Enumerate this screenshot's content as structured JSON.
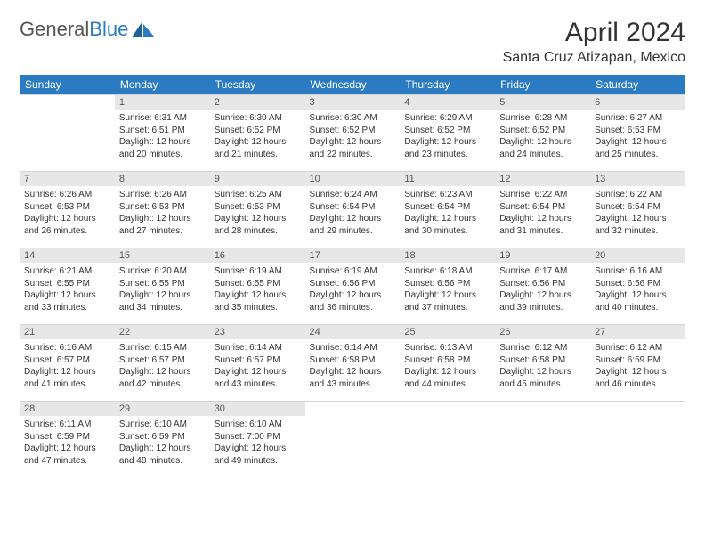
{
  "logo": {
    "word1": "General",
    "word2": "Blue"
  },
  "title": "April 2024",
  "location": "Santa Cruz Atizapan, Mexico",
  "colors": {
    "header_bg": "#2b7bc3",
    "header_fg": "#ffffff",
    "daynum_bg": "#e7e7e7",
    "daynum_fg": "#555555",
    "text": "#333333",
    "rule": "#d4d4d4",
    "page_bg": "#ffffff",
    "logo_gray": "#555555",
    "logo_blue": "#2b7bc3"
  },
  "weekdays": [
    "Sunday",
    "Monday",
    "Tuesday",
    "Wednesday",
    "Thursday",
    "Friday",
    "Saturday"
  ],
  "weeks": [
    [
      {
        "empty": true
      },
      {
        "day": "1",
        "sunrise": "Sunrise: 6:31 AM",
        "sunset": "Sunset: 6:51 PM",
        "daylight": "Daylight: 12 hours and 20 minutes."
      },
      {
        "day": "2",
        "sunrise": "Sunrise: 6:30 AM",
        "sunset": "Sunset: 6:52 PM",
        "daylight": "Daylight: 12 hours and 21 minutes."
      },
      {
        "day": "3",
        "sunrise": "Sunrise: 6:30 AM",
        "sunset": "Sunset: 6:52 PM",
        "daylight": "Daylight: 12 hours and 22 minutes."
      },
      {
        "day": "4",
        "sunrise": "Sunrise: 6:29 AM",
        "sunset": "Sunset: 6:52 PM",
        "daylight": "Daylight: 12 hours and 23 minutes."
      },
      {
        "day": "5",
        "sunrise": "Sunrise: 6:28 AM",
        "sunset": "Sunset: 6:52 PM",
        "daylight": "Daylight: 12 hours and 24 minutes."
      },
      {
        "day": "6",
        "sunrise": "Sunrise: 6:27 AM",
        "sunset": "Sunset: 6:53 PM",
        "daylight": "Daylight: 12 hours and 25 minutes."
      }
    ],
    [
      {
        "day": "7",
        "sunrise": "Sunrise: 6:26 AM",
        "sunset": "Sunset: 6:53 PM",
        "daylight": "Daylight: 12 hours and 26 minutes."
      },
      {
        "day": "8",
        "sunrise": "Sunrise: 6:26 AM",
        "sunset": "Sunset: 6:53 PM",
        "daylight": "Daylight: 12 hours and 27 minutes."
      },
      {
        "day": "9",
        "sunrise": "Sunrise: 6:25 AM",
        "sunset": "Sunset: 6:53 PM",
        "daylight": "Daylight: 12 hours and 28 minutes."
      },
      {
        "day": "10",
        "sunrise": "Sunrise: 6:24 AM",
        "sunset": "Sunset: 6:54 PM",
        "daylight": "Daylight: 12 hours and 29 minutes."
      },
      {
        "day": "11",
        "sunrise": "Sunrise: 6:23 AM",
        "sunset": "Sunset: 6:54 PM",
        "daylight": "Daylight: 12 hours and 30 minutes."
      },
      {
        "day": "12",
        "sunrise": "Sunrise: 6:22 AM",
        "sunset": "Sunset: 6:54 PM",
        "daylight": "Daylight: 12 hours and 31 minutes."
      },
      {
        "day": "13",
        "sunrise": "Sunrise: 6:22 AM",
        "sunset": "Sunset: 6:54 PM",
        "daylight": "Daylight: 12 hours and 32 minutes."
      }
    ],
    [
      {
        "day": "14",
        "sunrise": "Sunrise: 6:21 AM",
        "sunset": "Sunset: 6:55 PM",
        "daylight": "Daylight: 12 hours and 33 minutes."
      },
      {
        "day": "15",
        "sunrise": "Sunrise: 6:20 AM",
        "sunset": "Sunset: 6:55 PM",
        "daylight": "Daylight: 12 hours and 34 minutes."
      },
      {
        "day": "16",
        "sunrise": "Sunrise: 6:19 AM",
        "sunset": "Sunset: 6:55 PM",
        "daylight": "Daylight: 12 hours and 35 minutes."
      },
      {
        "day": "17",
        "sunrise": "Sunrise: 6:19 AM",
        "sunset": "Sunset: 6:56 PM",
        "daylight": "Daylight: 12 hours and 36 minutes."
      },
      {
        "day": "18",
        "sunrise": "Sunrise: 6:18 AM",
        "sunset": "Sunset: 6:56 PM",
        "daylight": "Daylight: 12 hours and 37 minutes."
      },
      {
        "day": "19",
        "sunrise": "Sunrise: 6:17 AM",
        "sunset": "Sunset: 6:56 PM",
        "daylight": "Daylight: 12 hours and 39 minutes."
      },
      {
        "day": "20",
        "sunrise": "Sunrise: 6:16 AM",
        "sunset": "Sunset: 6:56 PM",
        "daylight": "Daylight: 12 hours and 40 minutes."
      }
    ],
    [
      {
        "day": "21",
        "sunrise": "Sunrise: 6:16 AM",
        "sunset": "Sunset: 6:57 PM",
        "daylight": "Daylight: 12 hours and 41 minutes."
      },
      {
        "day": "22",
        "sunrise": "Sunrise: 6:15 AM",
        "sunset": "Sunset: 6:57 PM",
        "daylight": "Daylight: 12 hours and 42 minutes."
      },
      {
        "day": "23",
        "sunrise": "Sunrise: 6:14 AM",
        "sunset": "Sunset: 6:57 PM",
        "daylight": "Daylight: 12 hours and 43 minutes."
      },
      {
        "day": "24",
        "sunrise": "Sunrise: 6:14 AM",
        "sunset": "Sunset: 6:58 PM",
        "daylight": "Daylight: 12 hours and 43 minutes."
      },
      {
        "day": "25",
        "sunrise": "Sunrise: 6:13 AM",
        "sunset": "Sunset: 6:58 PM",
        "daylight": "Daylight: 12 hours and 44 minutes."
      },
      {
        "day": "26",
        "sunrise": "Sunrise: 6:12 AM",
        "sunset": "Sunset: 6:58 PM",
        "daylight": "Daylight: 12 hours and 45 minutes."
      },
      {
        "day": "27",
        "sunrise": "Sunrise: 6:12 AM",
        "sunset": "Sunset: 6:59 PM",
        "daylight": "Daylight: 12 hours and 46 minutes."
      }
    ],
    [
      {
        "day": "28",
        "sunrise": "Sunrise: 6:11 AM",
        "sunset": "Sunset: 6:59 PM",
        "daylight": "Daylight: 12 hours and 47 minutes."
      },
      {
        "day": "29",
        "sunrise": "Sunrise: 6:10 AM",
        "sunset": "Sunset: 6:59 PM",
        "daylight": "Daylight: 12 hours and 48 minutes."
      },
      {
        "day": "30",
        "sunrise": "Sunrise: 6:10 AM",
        "sunset": "Sunset: 7:00 PM",
        "daylight": "Daylight: 12 hours and 49 minutes."
      },
      {
        "empty": true
      },
      {
        "empty": true
      },
      {
        "empty": true
      },
      {
        "empty": true
      }
    ]
  ]
}
